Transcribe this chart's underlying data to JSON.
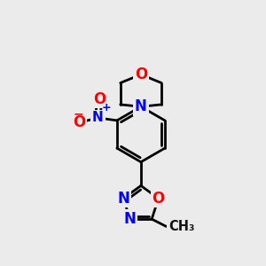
{
  "bg_color": "#ebebeb",
  "bond_color": "#000000",
  "bond_width": 2.0,
  "atom_colors": {
    "O": "#ff0000",
    "N": "#0000ff",
    "C": "#000000"
  },
  "font_size": 12
}
